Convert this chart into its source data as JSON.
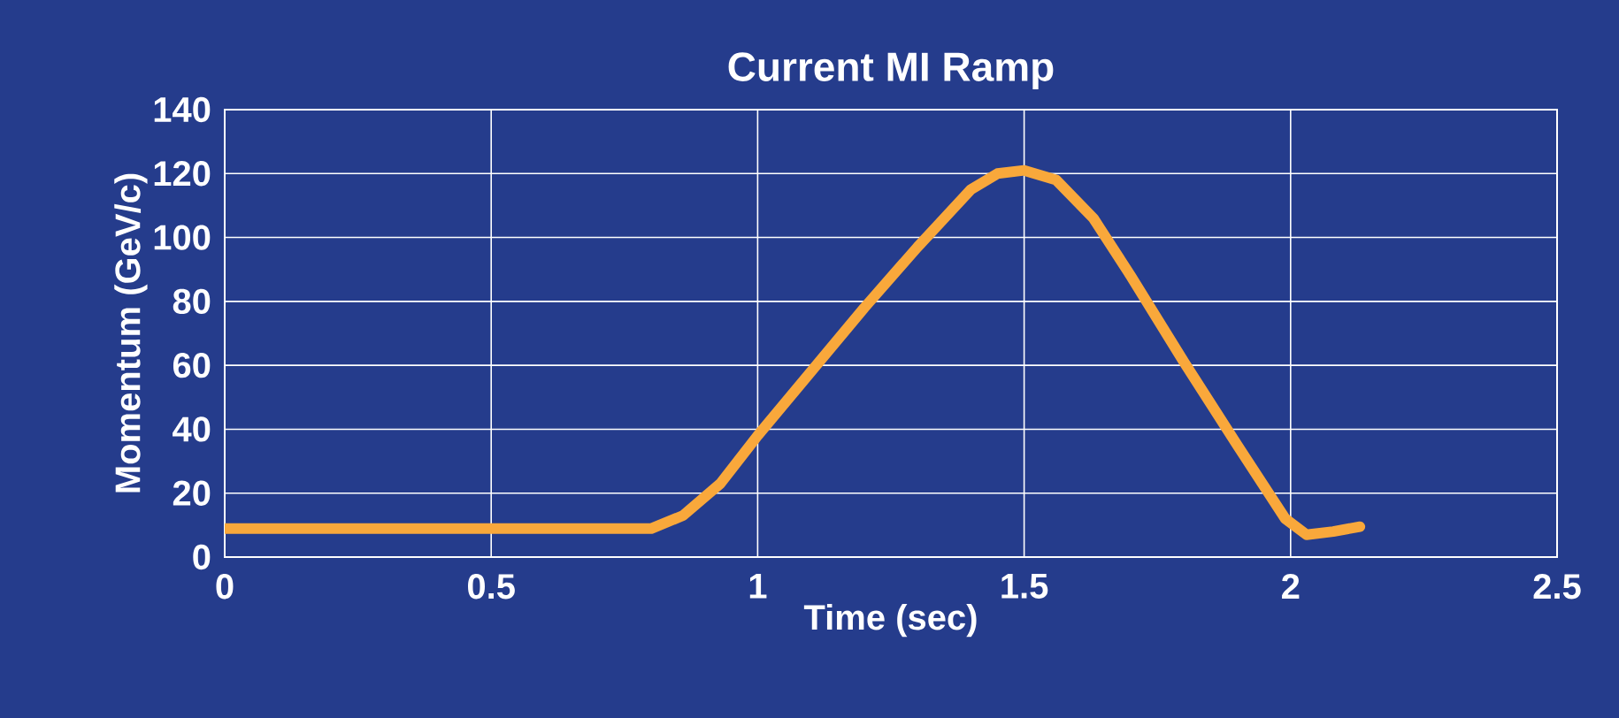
{
  "chart_data": {
    "type": "line",
    "title": "Current MI Ramp",
    "xlabel": "Time (sec)",
    "ylabel": "Momentum (GeV/c)",
    "xlim": [
      0,
      2.5
    ],
    "xticks": [
      0,
      0.5,
      1,
      1.5,
      2,
      2.5
    ],
    "ylim": [
      0,
      140
    ],
    "yticks": [
      0,
      20,
      40,
      60,
      80,
      100,
      120,
      140
    ],
    "grid": true,
    "series": [
      {
        "color": "#f9a83b",
        "x": [
          0,
          0.8,
          0.86,
          0.93,
          1.0,
          1.1,
          1.2,
          1.3,
          1.4,
          1.45,
          1.5,
          1.56,
          1.63,
          1.7,
          1.8,
          1.9,
          1.99,
          2.03,
          2.08,
          2.13
        ],
        "values": [
          8.9,
          8.9,
          13,
          23,
          38,
          58,
          78,
          97,
          115,
          120,
          121,
          118,
          106,
          88,
          61,
          35,
          12,
          7,
          8,
          9.5
        ]
      }
    ]
  }
}
